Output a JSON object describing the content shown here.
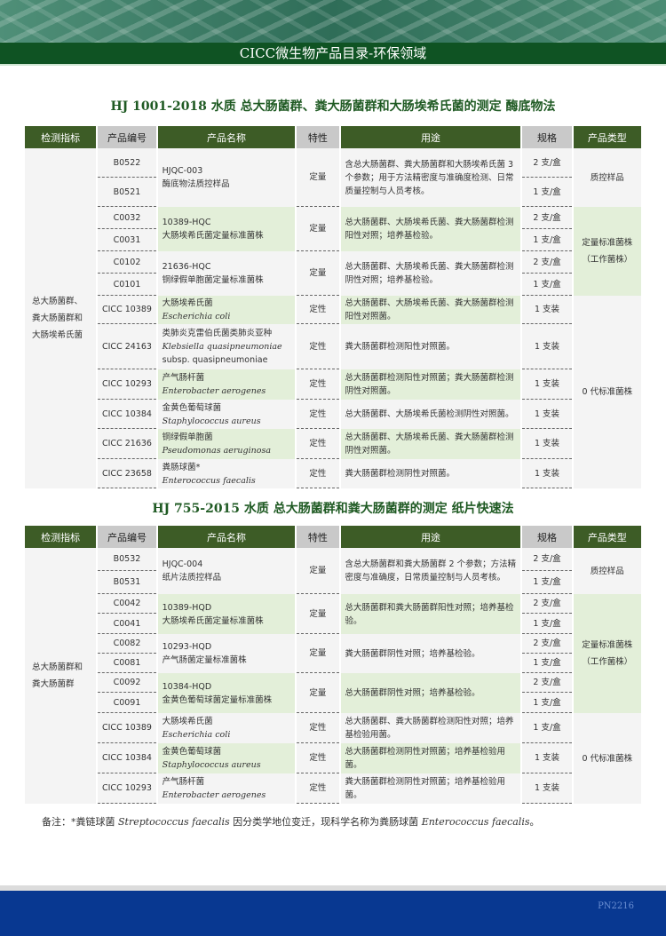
{
  "header": {
    "title": "CICC微生物产品目录-环保领域"
  },
  "columns": [
    "检测指标",
    "产品编号",
    "产品名称",
    "特性",
    "用途",
    "规格",
    "产品类型"
  ],
  "colors": {
    "header_green": "#3d5c26",
    "title_bar": "#0f5323",
    "shade": "#e3efd9",
    "footer": "#083891"
  },
  "tables": [
    {
      "title": "HJ 1001-2018 水质  总大肠菌群、粪大肠菌群和大肠埃希氏菌的测定  酶底物法",
      "indicator": "总大肠菌群、粪大肠菌群和大肠埃希氏菌",
      "types": [
        {
          "label": "质控样品",
          "products": [
            {
              "name": "HJQC-003",
              "name2": "酶底物法质控样品",
              "char": "定量",
              "use": "含总大肠菌群、粪大肠菌群和大肠埃希氏菌 3 个参数；用于方法精密度与准确度检测、日常质量控制与人员考核。",
              "items": [
                {
                  "code": "B0522",
                  "spec": "2 支/盒"
                },
                {
                  "code": "B0521",
                  "spec": "1 支/盒"
                }
              ]
            }
          ]
        },
        {
          "label": "定量标准菌株（工作菌株）",
          "shaded": true,
          "products": [
            {
              "name": "10389-HQC",
              "name2": "大肠埃希氏菌定量标准菌株",
              "char": "定量",
              "use": "总大肠菌群、大肠埃希氏菌、粪大肠菌群检测阳性对照；培养基检验。",
              "shaded": true,
              "items": [
                {
                  "code": "C0032",
                  "spec": "2 支/盒"
                },
                {
                  "code": "C0031",
                  "spec": "1 支/盒"
                }
              ]
            },
            {
              "name": "21636-HQC",
              "name2": "铜绿假单胞菌定量标准菌株",
              "char": "定量",
              "use": "总大肠菌群、大肠埃希氏菌、粪大肠菌群检测阴性对照；培养基检验。",
              "items": [
                {
                  "code": "C0102",
                  "spec": "2 支/盒"
                },
                {
                  "code": "C0101",
                  "spec": "1 支/盒"
                }
              ]
            }
          ]
        },
        {
          "label": "0 代标准菌株",
          "products": [
            {
              "name": "大肠埃希氏菌",
              "latin": "Escherichia coli",
              "char": "定性",
              "use": "总大肠菌群、大肠埃希氏菌、粪大肠菌群检测阳性对照菌。",
              "shaded": true,
              "items": [
                {
                  "code": "CICC 10389",
                  "spec": "1 支装"
                }
              ]
            },
            {
              "name": "类肺炎克雷伯氏菌类肺炎亚种",
              "latin": "Klebsiella quasipneumoniae",
              "latin2": "subsp. quasipneumoniae",
              "char": "定性",
              "use": "粪大肠菌群检测阳性对照菌。",
              "items": [
                {
                  "code": "CICC 24163",
                  "spec": "1 支装"
                }
              ]
            },
            {
              "name": "产气肠杆菌",
              "latin": "Enterobacter aerogenes",
              "char": "定性",
              "use": "总大肠菌群检测阳性对照菌；粪大肠菌群检测阴性对照菌。",
              "shaded": true,
              "items": [
                {
                  "code": "CICC 10293",
                  "spec": "1 支装"
                }
              ]
            },
            {
              "name": "金黄色葡萄球菌",
              "latin": "Staphylococcus aureus",
              "char": "定性",
              "use": "总大肠菌群、大肠埃希氏菌检测阴性对照菌。",
              "items": [
                {
                  "code": "CICC 10384",
                  "spec": "1 支装"
                }
              ]
            },
            {
              "name": "铜绿假单胞菌",
              "latin": "Pseudomonas aeruginosa",
              "char": "定性",
              "use": "总大肠菌群、大肠埃希氏菌、粪大肠菌群检测阴性对照菌。",
              "shaded": true,
              "items": [
                {
                  "code": "CICC 21636",
                  "spec": "1 支装"
                }
              ]
            },
            {
              "name": "粪肠球菌*",
              "latin": "Enterococcus faecalis",
              "char": "定性",
              "use": "粪大肠菌群检测阴性对照菌。",
              "items": [
                {
                  "code": "CICC 23658",
                  "spec": "1 支装"
                }
              ]
            }
          ]
        }
      ]
    },
    {
      "title": "HJ 755-2015  水质  总大肠菌群和粪大肠菌群的测定  纸片快速法",
      "indicator": "总大肠菌群和粪大肠菌群",
      "types": [
        {
          "label": "质控样品",
          "products": [
            {
              "name": "HJQC-004",
              "name2": "纸片法质控样品",
              "char": "定量",
              "use": "含总大肠菌群和粪大肠菌群 2 个参数；方法精密度与准确度，日常质量控制与人员考核。",
              "items": [
                {
                  "code": "B0532",
                  "spec": "2 支/盒"
                },
                {
                  "code": "B0531",
                  "spec": "1 支/盒"
                }
              ]
            }
          ]
        },
        {
          "label": "定量标准菌株（工作菌株）",
          "shaded": true,
          "products": [
            {
              "name": "10389-HQD",
              "name2": "大肠埃希氏菌定量标准菌株",
              "char": "定量",
              "use": "总大肠菌群和粪大肠菌群阳性对照；培养基检验。",
              "shaded": true,
              "items": [
                {
                  "code": "C0042",
                  "spec": "2 支/盒"
                },
                {
                  "code": "C0041",
                  "spec": "1 支/盒"
                }
              ]
            },
            {
              "name": "10293-HQD",
              "name2": "产气肠菌定量标准菌株",
              "char": "定量",
              "use": "粪大肠菌群阴性对照；培养基检验。",
              "items": [
                {
                  "code": "C0082",
                  "spec": "2 支/盒"
                },
                {
                  "code": "C0081",
                  "spec": "1 支/盒"
                }
              ]
            },
            {
              "name": "10384-HQD",
              "name2": "金黄色葡萄球菌定量标准菌株",
              "char": "定量",
              "use": "总大肠菌群阴性对照；培养基检验。",
              "shaded": true,
              "items": [
                {
                  "code": "C0092",
                  "spec": "2 支/盒"
                },
                {
                  "code": "C0091",
                  "spec": "1 支/盒"
                }
              ]
            }
          ]
        },
        {
          "label": "0 代标准菌株",
          "products": [
            {
              "name": "大肠埃希氏菌",
              "latin": "Escherichia coli",
              "char": "定性",
              "use": "总大肠菌群、粪大肠菌群检测阳性对照；培养基检验用菌。",
              "items": [
                {
                  "code": "CICC 10389",
                  "spec": "1 支/盒"
                }
              ]
            },
            {
              "name": "金黄色葡萄球菌",
              "latin": "Staphylococcus aureus",
              "char": "定性",
              "use": "总大肠菌群检测阴性对照菌；培养基检验用菌。",
              "shaded": true,
              "items": [
                {
                  "code": "CICC 10384",
                  "spec": "1 支装"
                }
              ]
            },
            {
              "name": "产气肠杆菌",
              "latin": "Enterobacter aerogenes",
              "char": "定性",
              "use": "粪大肠菌群检测阴性对照菌；培养基检验用菌。",
              "items": [
                {
                  "code": "CICC 10293",
                  "spec": "1 支装"
                }
              ]
            }
          ]
        }
      ]
    }
  ],
  "note": {
    "prefix": "备注：*粪链球菌 ",
    "latin1": "Streptococcus faecalis",
    "mid": " 因分类学地位变迁，现科学名称为粪肠球菌 ",
    "latin2": "Enterococcus faecalis",
    "suffix": "。"
  },
  "footer": {
    "code": "PN2216"
  }
}
